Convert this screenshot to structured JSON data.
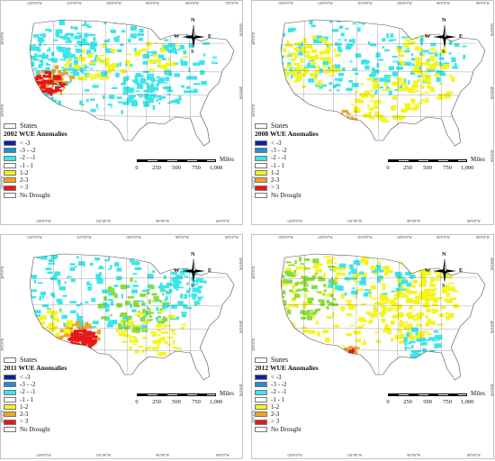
{
  "compass": {
    "n": "N",
    "s": "S",
    "e": "E",
    "w": "W"
  },
  "scalebar": {
    "unit": "Miles",
    "ticks": [
      "0",
      "250",
      "500",
      "750",
      "1,000"
    ]
  },
  "legend_states_label": "States",
  "legend_items": [
    {
      "label": "< -3",
      "color": "#0b1fa8"
    },
    {
      "label": "-3 - -2",
      "color": "#1f8fcf"
    },
    {
      "label": "-2 - -1",
      "color": "#39e6ea"
    },
    {
      "label": "-1 - 1",
      "color": "#ffffff"
    },
    {
      "label": "1-2",
      "color": "#f5f51a"
    },
    {
      "label": "2-3",
      "color": "#f0a51c"
    },
    {
      "label": "> 3",
      "color": "#e8161b"
    },
    {
      "label": "No Drought",
      "color": "#ffffff"
    }
  ],
  "panels": [
    {
      "year_title": "2002 WUE Anomalies",
      "top_coords": [
        "120°0'0\"W",
        "110°0'0\"W",
        "100°0'0\"W",
        "90°0'0\"W",
        "80°0'0\"W",
        "70°0'0\"W"
      ],
      "bottom_coords": [
        "130°0'0\"W",
        "110°0'0\"W",
        "90°0'0\"W",
        "60°0'0\"W"
      ],
      "left_coords": [
        "40°0'0\"N",
        "30°0'0\"N",
        "20°0'0\"N"
      ],
      "right_coords": [
        "50°0'0\"N",
        "40°0'0\"N"
      ]
    },
    {
      "year_title": "2008 WUE Anomalies",
      "top_coords": [
        "130°0'0\"W",
        "120°0'0\"W",
        "110°0'0\"W",
        "100°0'0\"W",
        "90°0'0\"W",
        "80°0'0\"W"
      ],
      "bottom_coords": [
        "120°0'0\"W",
        "110°0'0\"W",
        "90°0'0\"W",
        "80°0'0\"W"
      ],
      "left_coords": [
        "40°0'0\"N",
        "30°0'0\"N",
        "20°0'0\"N"
      ],
      "right_coords": [
        "50°0'0\"N",
        "40°0'0\"N",
        "30°0'0\"N"
      ]
    },
    {
      "year_title": "2011 WUE Anomalies",
      "top_coords": [
        "120°0'0\"W",
        "110°0'0\"W",
        "100°0'0\"W",
        "90°0'0\"W",
        "80°0'0\"W"
      ],
      "bottom_coords": [
        "120°0'0\"W",
        "110°0'0\"W",
        "90°0'0\"W",
        "80°0'0\"W"
      ],
      "left_coords": [
        "40°0'0\"N",
        "30°0'0\"N",
        "20°0'0\"N"
      ],
      "right_coords": [
        "50°0'0\"N",
        "40°0'0\"N",
        "30°0'0\"N"
      ]
    },
    {
      "year_title": "2012 WUE Anomalies",
      "top_coords": [
        "130°0'0\"W",
        "120°0'0\"W",
        "110°0'0\"W",
        "100°0'0\"W",
        "90°0'0\"W",
        "80°0'0\"W"
      ],
      "bottom_coords": [
        "120°0'0\"W",
        "110°0'0\"W",
        "90°0'0\"W",
        "80°0'0\"W"
      ],
      "left_coords": [
        "40°0'0\"N",
        "30°0'0\"N",
        "20°0'0\"N"
      ],
      "right_coords": [
        "50°0'0\"N",
        "40°0'0\"N",
        "30°0'0\"N"
      ]
    }
  ]
}
